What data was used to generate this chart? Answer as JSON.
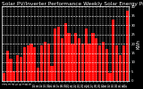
{
  "title": "Solar PV/Inverter Performance Weekly Solar Energy Production",
  "ylabel": "KWh",
  "bar_color": "#ff0000",
  "background_color": "#000000",
  "plot_bg_color": "#000000",
  "grid_color": "#ffffff",
  "values": [
    4,
    16,
    12,
    5,
    14,
    13,
    18,
    19,
    20,
    18,
    7,
    19,
    21,
    20,
    8,
    28,
    29,
    23,
    31,
    26,
    20,
    26,
    23,
    20,
    28,
    20,
    26,
    23,
    19,
    21,
    17,
    4,
    33,
    19,
    14,
    19,
    38
  ],
  "xlabels": [
    "1",
    "2",
    "3",
    "4",
    "5",
    "6",
    "7",
    "8",
    "9",
    "10",
    "11",
    "12",
    "13",
    "14",
    "15",
    "16",
    "17",
    "18",
    "19",
    "20",
    "21",
    "22",
    "23",
    "24",
    "25",
    "26",
    "27",
    "28",
    "29",
    "30",
    "31",
    "32",
    "33",
    "34",
    "35",
    "36",
    "37"
  ],
  "ylim": [
    0,
    40
  ],
  "ytick_vals": [
    0,
    5,
    10,
    15,
    20,
    25,
    30,
    35,
    40
  ],
  "ytick_labels": [
    "0",
    "5",
    "10",
    "15",
    "20",
    "25",
    "30",
    "35",
    "40"
  ],
  "title_fontsize": 4.2,
  "axis_fontsize": 3.5,
  "tick_fontsize": 2.8,
  "title_color": "#ffffff",
  "tick_color": "#ffffff",
  "spine_color": "#ffffff"
}
